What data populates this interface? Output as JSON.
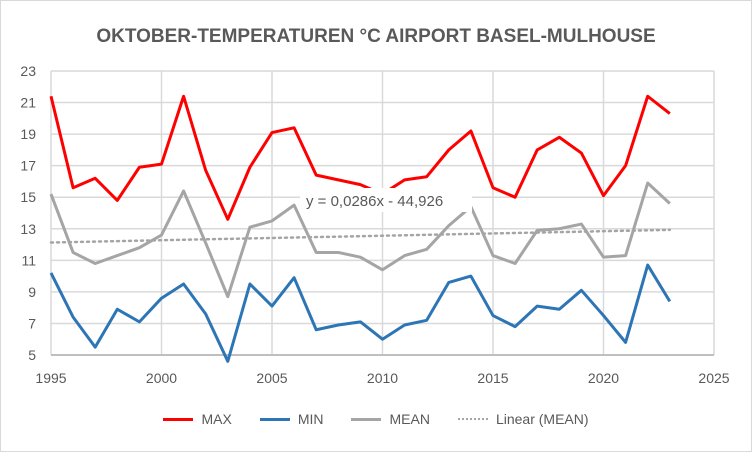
{
  "chart_data": {
    "type": "line",
    "title": "OKTOBER-TEMPERATUREN °C AIRPORT BASEL-MULHOUSE",
    "xlabel": "",
    "ylabel": "",
    "xlim": [
      1995,
      2025
    ],
    "ylim": [
      5,
      23
    ],
    "xticks": [
      "1995",
      "2000",
      "2005",
      "2010",
      "2015",
      "2020",
      "2025"
    ],
    "yticks": [
      "5",
      "7",
      "9",
      "11",
      "13",
      "15",
      "17",
      "19",
      "21",
      "23"
    ],
    "grid": true,
    "legend_position": "bottom",
    "x": [
      1995,
      1996,
      1997,
      1998,
      1999,
      2000,
      2001,
      2002,
      2003,
      2004,
      2005,
      2006,
      2007,
      2008,
      2009,
      2010,
      2011,
      2012,
      2013,
      2014,
      2015,
      2016,
      2017,
      2018,
      2019,
      2020,
      2021,
      2022,
      2023
    ],
    "series": [
      {
        "name": "MAX",
        "color": "#ff0000",
        "values": [
          21.4,
          15.6,
          16.2,
          14.8,
          16.9,
          17.1,
          21.4,
          16.7,
          13.6,
          16.9,
          19.1,
          19.4,
          16.4,
          16.1,
          15.8,
          15.2,
          16.1,
          16.3,
          18.0,
          19.2,
          15.6,
          15.0,
          18.0,
          18.8,
          17.8,
          15.1,
          17.0,
          21.4,
          20.3
        ]
      },
      {
        "name": "MIN",
        "color": "#2e75b6",
        "values": [
          10.2,
          7.4,
          5.5,
          7.9,
          7.1,
          8.6,
          9.5,
          7.6,
          4.6,
          9.5,
          8.1,
          9.9,
          6.6,
          6.9,
          7.1,
          6.0,
          6.9,
          7.2,
          9.6,
          10.0,
          7.5,
          6.8,
          8.1,
          7.9,
          9.1,
          7.5,
          5.8,
          10.7,
          8.4
        ]
      },
      {
        "name": "MEAN",
        "color": "#a5a5a5",
        "values": [
          15.2,
          11.5,
          10.8,
          11.3,
          11.8,
          12.6,
          15.4,
          12.1,
          8.7,
          13.1,
          13.5,
          14.5,
          11.5,
          11.5,
          11.2,
          10.4,
          11.3,
          11.7,
          13.2,
          14.4,
          11.3,
          10.8,
          12.9,
          13.0,
          13.3,
          11.2,
          11.3,
          15.9,
          14.6
        ]
      }
    ],
    "trendline": {
      "name": "Linear (MEAN)",
      "color": "#a5a5a5",
      "slope": 0.0286,
      "intercept": -44.926,
      "x_range": [
        1995,
        2023
      ],
      "label": "y = 0,0286x - 44,926"
    }
  }
}
